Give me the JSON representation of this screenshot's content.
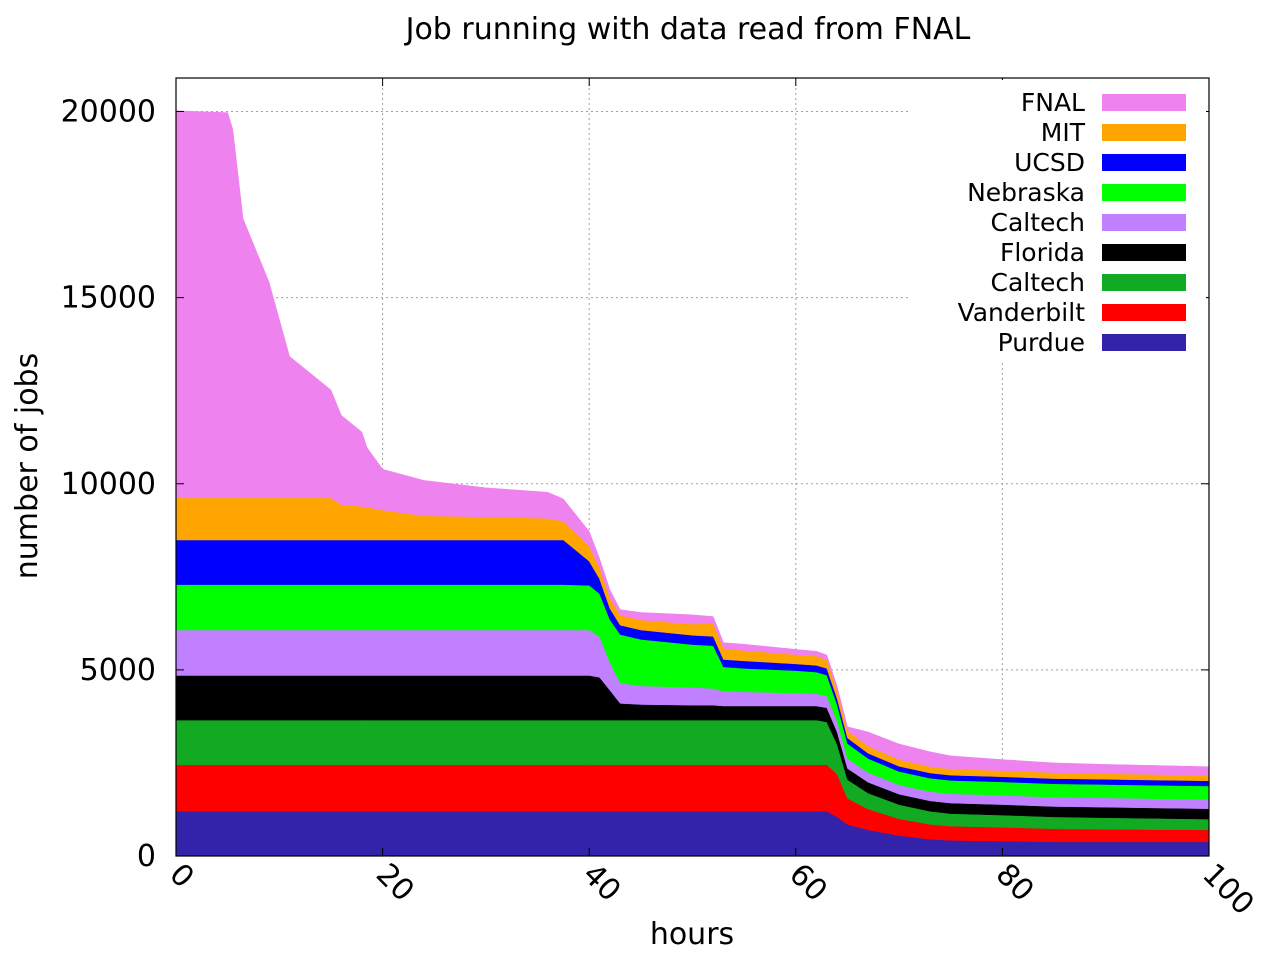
{
  "chart_data": {
    "type": "area",
    "stacked": true,
    "title": "Job running with data read from FNAL",
    "xlabel": "hours",
    "ylabel": "number of jobs",
    "xlim": [
      0,
      100
    ],
    "ylim": [
      0,
      20900
    ],
    "xticks": [
      0,
      20,
      40,
      60,
      80,
      100
    ],
    "yticks": [
      0,
      5000,
      10000,
      15000,
      20000
    ],
    "grid": true,
    "legend_position": "top-right",
    "x": [
      0,
      5,
      5.5,
      6.5,
      9,
      11,
      15,
      16,
      18,
      18.5,
      20,
      24,
      30,
      36,
      37.5,
      40,
      41,
      42,
      43,
      45,
      50,
      52,
      53,
      55,
      60,
      62,
      63,
      64,
      65,
      67,
      70,
      73,
      75,
      80,
      85,
      90,
      95,
      100
    ],
    "series": [
      {
        "name": "Purdue",
        "color": "#3322aa",
        "values": [
          1200,
          1200,
          1200,
          1200,
          1200,
          1200,
          1200,
          1200,
          1200,
          1200,
          1200,
          1200,
          1200,
          1200,
          1200,
          1200,
          1200,
          1200,
          1200,
          1200,
          1200,
          1200,
          1200,
          1200,
          1200,
          1200,
          1200,
          1050,
          850,
          700,
          550,
          450,
          420,
          400,
          380,
          380,
          380,
          380
        ]
      },
      {
        "name": "Vanderbilt",
        "color": "#ff0000",
        "values": [
          1250,
          1250,
          1250,
          1250,
          1250,
          1250,
          1250,
          1250,
          1250,
          1250,
          1250,
          1250,
          1250,
          1250,
          1250,
          1250,
          1250,
          1250,
          1250,
          1250,
          1250,
          1250,
          1250,
          1250,
          1250,
          1250,
          1250,
          1150,
          700,
          560,
          450,
          400,
          380,
          370,
          350,
          340,
          330,
          320
        ]
      },
      {
        "name": "Caltech",
        "color": "#11aa22",
        "values": [
          1200,
          1200,
          1200,
          1200,
          1200,
          1200,
          1200,
          1200,
          1200,
          1200,
          1200,
          1200,
          1200,
          1200,
          1200,
          1200,
          1200,
          1200,
          1200,
          1200,
          1200,
          1200,
          1200,
          1200,
          1200,
          1200,
          1150,
          800,
          500,
          430,
          380,
          350,
          340,
          330,
          320,
          310,
          300,
          290
        ]
      },
      {
        "name": "Florida",
        "color": "#000000",
        "values": [
          1200,
          1200,
          1200,
          1200,
          1200,
          1200,
          1200,
          1200,
          1200,
          1200,
          1200,
          1200,
          1200,
          1200,
          1200,
          1200,
          1150,
          800,
          450,
          420,
          400,
          400,
          380,
          380,
          380,
          380,
          380,
          330,
          300,
          290,
          280,
          280,
          280,
          280,
          280,
          280,
          280,
          280
        ]
      },
      {
        "name": "Caltech",
        "color": "#c080ff",
        "values": [
          1220,
          1220,
          1220,
          1220,
          1220,
          1220,
          1220,
          1220,
          1220,
          1220,
          1220,
          1220,
          1220,
          1220,
          1220,
          1220,
          1100,
          750,
          550,
          500,
          480,
          450,
          400,
          380,
          350,
          330,
          320,
          290,
          270,
          260,
          250,
          250,
          250,
          250,
          250,
          250,
          250,
          250
        ]
      },
      {
        "name": "Nebraska",
        "color": "#00ff00",
        "values": [
          1220,
          1220,
          1220,
          1220,
          1220,
          1220,
          1220,
          1220,
          1220,
          1220,
          1220,
          1220,
          1220,
          1220,
          1220,
          1200,
          1150,
          1150,
          1300,
          1250,
          1150,
          1150,
          650,
          630,
          600,
          580,
          560,
          450,
          400,
          380,
          360,
          360,
          360,
          360,
          360,
          360,
          360,
          360
        ]
      },
      {
        "name": "UCSD",
        "color": "#0000ff",
        "values": [
          1200,
          1200,
          1200,
          1200,
          1200,
          1200,
          1200,
          1200,
          1200,
          1200,
          1200,
          1200,
          1200,
          1200,
          1200,
          650,
          400,
          300,
          250,
          250,
          250,
          250,
          200,
          200,
          180,
          180,
          180,
          160,
          150,
          140,
          140,
          140,
          140,
          140,
          140,
          140,
          140,
          140
        ]
      },
      {
        "name": "MIT",
        "color": "#ffa500",
        "values": [
          1130,
          1130,
          1130,
          1130,
          1130,
          1130,
          1130,
          950,
          900,
          880,
          800,
          650,
          620,
          580,
          500,
          400,
          300,
          280,
          270,
          270,
          300,
          350,
          300,
          280,
          250,
          250,
          240,
          220,
          200,
          190,
          180,
          170,
          170,
          160,
          160,
          150,
          150,
          150
        ]
      },
      {
        "name": "FNAL",
        "color": "#ee82ee",
        "values": [
          10400,
          10350,
          9900,
          7500,
          5800,
          3800,
          2900,
          2400,
          2000,
          1600,
          1100,
          950,
          780,
          700,
          600,
          400,
          250,
          220,
          150,
          200,
          250,
          180,
          150,
          170,
          140,
          130,
          120,
          110,
          100,
          380,
          420,
          400,
          350,
          300,
          260,
          250,
          240,
          230
        ]
      }
    ]
  }
}
